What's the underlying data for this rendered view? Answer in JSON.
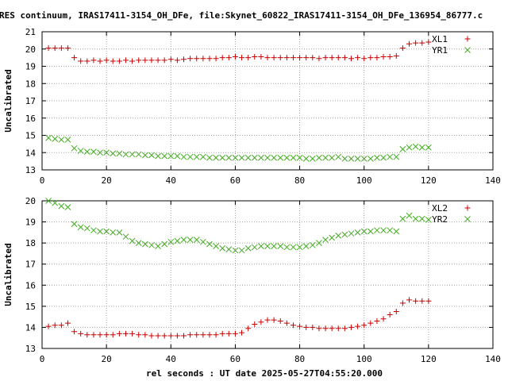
{
  "chart_data": {
    "title": "RES continuum, IRAS17411-3154_OH_DFe, file:Skynet_60822_IRAS17411-3154_OH_DFe_136954_86777.c",
    "xlabel": "rel seconds : UT date 2025-05-27T04:55:20.000",
    "x_ticks": [
      "0",
      "20",
      "40",
      "60",
      "80",
      "100",
      "120",
      "140"
    ],
    "panels": [
      {
        "type": "scatter",
        "ylabel": "Uncalibrated",
        "xlim": [
          0,
          140
        ],
        "ylim": [
          13,
          21
        ],
        "y_ticks": [
          "13",
          "14",
          "15",
          "16",
          "17",
          "18",
          "19",
          "20",
          "21"
        ],
        "legend_position": "top-right",
        "series": [
          {
            "name": "XL1",
            "marker": "plus",
            "color": "#cc0000",
            "x": [
              2,
              4,
              6,
              8,
              10,
              12,
              14,
              16,
              18,
              20,
              22,
              24,
              26,
              28,
              30,
              32,
              34,
              36,
              38,
              40,
              42,
              44,
              46,
              48,
              50,
              52,
              54,
              56,
              58,
              60,
              62,
              64,
              66,
              68,
              70,
              72,
              74,
              76,
              78,
              80,
              82,
              84,
              86,
              88,
              90,
              92,
              94,
              96,
              98,
              100,
              102,
              104,
              106,
              108,
              110,
              112,
              114,
              116,
              118,
              120
            ],
            "y": [
              20.05,
              20.05,
              20.05,
              20.05,
              19.5,
              19.3,
              19.3,
              19.35,
              19.3,
              19.35,
              19.3,
              19.3,
              19.35,
              19.3,
              19.35,
              19.35,
              19.35,
              19.35,
              19.35,
              19.4,
              19.35,
              19.4,
              19.45,
              19.45,
              19.45,
              19.45,
              19.45,
              19.5,
              19.5,
              19.55,
              19.5,
              19.5,
              19.55,
              19.55,
              19.5,
              19.5,
              19.5,
              19.5,
              19.5,
              19.5,
              19.5,
              19.5,
              19.45,
              19.5,
              19.5,
              19.5,
              19.5,
              19.45,
              19.5,
              19.45,
              19.5,
              19.5,
              19.55,
              19.55,
              19.6,
              20.05,
              20.3,
              20.35,
              20.35,
              20.4
            ]
          },
          {
            "name": "YR1",
            "marker": "cross",
            "color": "#44aa22",
            "x": [
              2,
              4,
              6,
              8,
              10,
              12,
              14,
              16,
              18,
              20,
              22,
              24,
              26,
              28,
              30,
              32,
              34,
              36,
              38,
              40,
              42,
              44,
              46,
              48,
              50,
              52,
              54,
              56,
              58,
              60,
              62,
              64,
              66,
              68,
              70,
              72,
              74,
              76,
              78,
              80,
              82,
              84,
              86,
              88,
              90,
              92,
              94,
              96,
              98,
              100,
              102,
              104,
              106,
              108,
              110,
              112,
              114,
              116,
              118,
              120
            ],
            "y": [
              14.85,
              14.8,
              14.75,
              14.75,
              14.25,
              14.1,
              14.05,
              14.05,
              14.0,
              14.0,
              13.95,
              13.95,
              13.9,
              13.9,
              13.9,
              13.85,
              13.85,
              13.8,
              13.8,
              13.8,
              13.8,
              13.75,
              13.75,
              13.75,
              13.75,
              13.7,
              13.7,
              13.7,
              13.7,
              13.7,
              13.7,
              13.7,
              13.7,
              13.7,
              13.7,
              13.7,
              13.7,
              13.7,
              13.7,
              13.7,
              13.65,
              13.65,
              13.7,
              13.7,
              13.7,
              13.75,
              13.65,
              13.65,
              13.65,
              13.65,
              13.65,
              13.7,
              13.7,
              13.75,
              13.75,
              14.2,
              14.3,
              14.35,
              14.3,
              14.3
            ]
          }
        ]
      },
      {
        "type": "scatter",
        "ylabel": "Uncalibrated",
        "xlim": [
          0,
          140
        ],
        "ylim": [
          13,
          20
        ],
        "y_ticks": [
          "13",
          "14",
          "15",
          "16",
          "17",
          "18",
          "19",
          "20"
        ],
        "legend_position": "top-right",
        "series": [
          {
            "name": "XL2",
            "marker": "plus",
            "color": "#cc0000",
            "x": [
              2,
              4,
              6,
              8,
              10,
              12,
              14,
              16,
              18,
              20,
              22,
              24,
              26,
              28,
              30,
              32,
              34,
              36,
              38,
              40,
              42,
              44,
              46,
              48,
              50,
              52,
              54,
              56,
              58,
              60,
              62,
              64,
              66,
              68,
              70,
              72,
              74,
              76,
              78,
              80,
              82,
              84,
              86,
              88,
              90,
              92,
              94,
              96,
              98,
              100,
              102,
              104,
              106,
              108,
              110,
              112,
              114,
              116,
              118,
              120
            ],
            "y": [
              14.05,
              14.1,
              14.1,
              14.2,
              13.8,
              13.7,
              13.65,
              13.65,
              13.65,
              13.65,
              13.65,
              13.7,
              13.7,
              13.7,
              13.65,
              13.65,
              13.6,
              13.6,
              13.6,
              13.6,
              13.6,
              13.6,
              13.65,
              13.65,
              13.65,
              13.65,
              13.65,
              13.7,
              13.7,
              13.7,
              13.75,
              13.95,
              14.15,
              14.25,
              14.35,
              14.35,
              14.3,
              14.2,
              14.1,
              14.05,
              14.0,
              14.0,
              13.95,
              13.95,
              13.95,
              13.95,
              13.95,
              14.0,
              14.05,
              14.1,
              14.2,
              14.3,
              14.4,
              14.6,
              14.75,
              15.15,
              15.3,
              15.25,
              15.25,
              15.25
            ]
          },
          {
            "name": "YR2",
            "marker": "cross",
            "color": "#44aa22",
            "x": [
              2,
              4,
              6,
              8,
              10,
              12,
              14,
              16,
              18,
              20,
              22,
              24,
              26,
              28,
              30,
              32,
              34,
              36,
              38,
              40,
              42,
              44,
              46,
              48,
              50,
              52,
              54,
              56,
              58,
              60,
              62,
              64,
              66,
              68,
              70,
              72,
              74,
              76,
              78,
              80,
              82,
              84,
              86,
              88,
              90,
              92,
              94,
              96,
              98,
              100,
              102,
              104,
              106,
              108,
              110,
              112,
              114,
              116,
              118,
              120
            ],
            "y": [
              20.0,
              19.9,
              19.75,
              19.7,
              18.9,
              18.75,
              18.7,
              18.6,
              18.55,
              18.55,
              18.5,
              18.5,
              18.3,
              18.1,
              18.0,
              17.95,
              17.9,
              17.85,
              17.95,
              18.05,
              18.1,
              18.15,
              18.15,
              18.15,
              18.05,
              17.95,
              17.85,
              17.75,
              17.7,
              17.65,
              17.65,
              17.75,
              17.8,
              17.85,
              17.85,
              17.85,
              17.85,
              17.8,
              17.8,
              17.8,
              17.85,
              17.9,
              18.0,
              18.15,
              18.25,
              18.35,
              18.4,
              18.45,
              18.5,
              18.55,
              18.55,
              18.6,
              18.6,
              18.6,
              18.55,
              19.15,
              19.3,
              19.15,
              19.15,
              19.1
            ]
          }
        ]
      }
    ]
  }
}
